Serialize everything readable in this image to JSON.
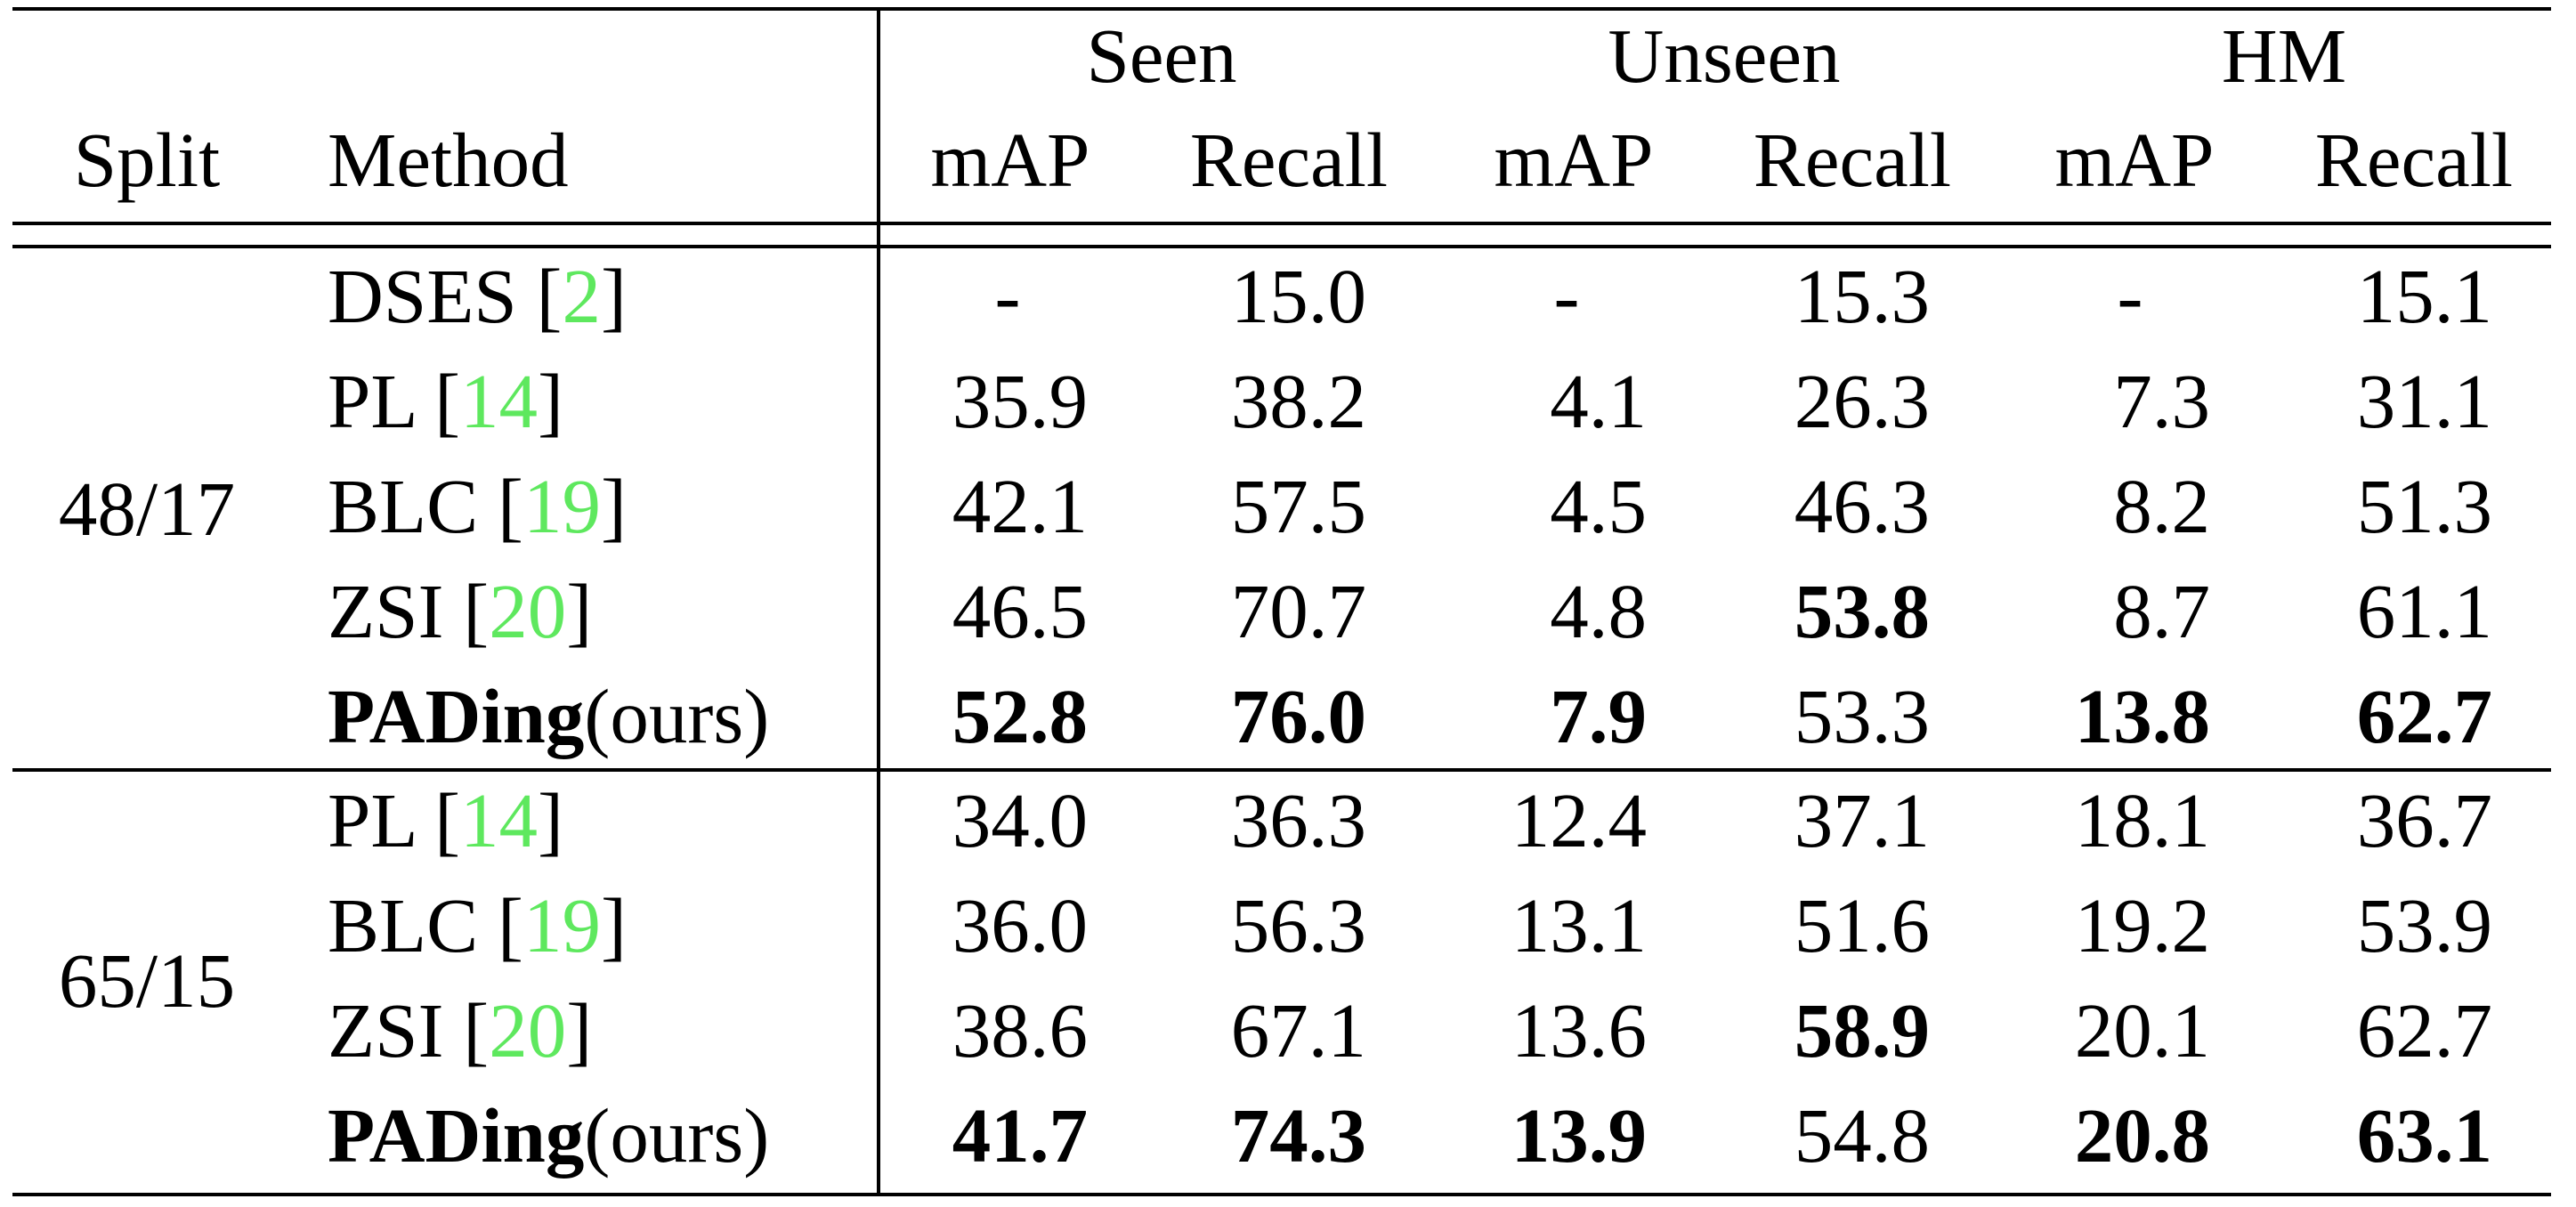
{
  "header": {
    "groups": [
      "Seen",
      "Unseen",
      "HM"
    ],
    "split": "Split",
    "method": "Method",
    "subcols": [
      "mAP",
      "Recall",
      "mAP",
      "Recall",
      "mAP",
      "Recall"
    ]
  },
  "rows": [
    {
      "method": "DSES",
      "ref": "2",
      "values": [
        "-",
        "15.0",
        "-",
        "15.3",
        "-",
        "15.1"
      ]
    },
    {
      "method": "PL",
      "ref": "14",
      "values": [
        "35.9",
        "38.2",
        "4.1",
        "26.3",
        "7.3",
        "31.1"
      ]
    },
    {
      "method": "BLC",
      "ref": "19",
      "values": [
        "42.1",
        "57.5",
        "4.5",
        "46.3",
        "8.2",
        "51.3"
      ]
    },
    {
      "method": "ZSI",
      "ref": "20",
      "values": [
        "46.5",
        "70.7",
        "4.8",
        "53.8",
        "8.7",
        "61.1"
      ]
    },
    {
      "method": "PADing",
      "suffix": "(ours)",
      "values": [
        "52.8",
        "76.0",
        "7.9",
        "53.3",
        "13.8",
        "62.7"
      ]
    },
    {
      "method": "PL",
      "ref": "14",
      "values": [
        "34.0",
        "36.3",
        "12.4",
        "37.1",
        "18.1",
        "36.7"
      ]
    },
    {
      "method": "BLC",
      "ref": "19",
      "values": [
        "36.0",
        "56.3",
        "13.1",
        "51.6",
        "19.2",
        "53.9"
      ]
    },
    {
      "method": "ZSI",
      "ref": "20",
      "values": [
        "38.6",
        "67.1",
        "13.6",
        "58.9",
        "20.1",
        "62.7"
      ]
    },
    {
      "method": "PADing",
      "suffix": "(ours)",
      "values": [
        "41.7",
        "74.3",
        "13.9",
        "54.8",
        "20.8",
        "63.1"
      ]
    }
  ],
  "splits": [
    "48/17",
    "65/15"
  ],
  "bold": [
    [],
    [],
    [],
    [
      3
    ],
    [
      0,
      1,
      2,
      4,
      5
    ],
    [],
    [],
    [
      3
    ],
    [
      0,
      1,
      2,
      4,
      5
    ]
  ],
  "bracket_open": "[",
  "bracket_close": "]"
}
